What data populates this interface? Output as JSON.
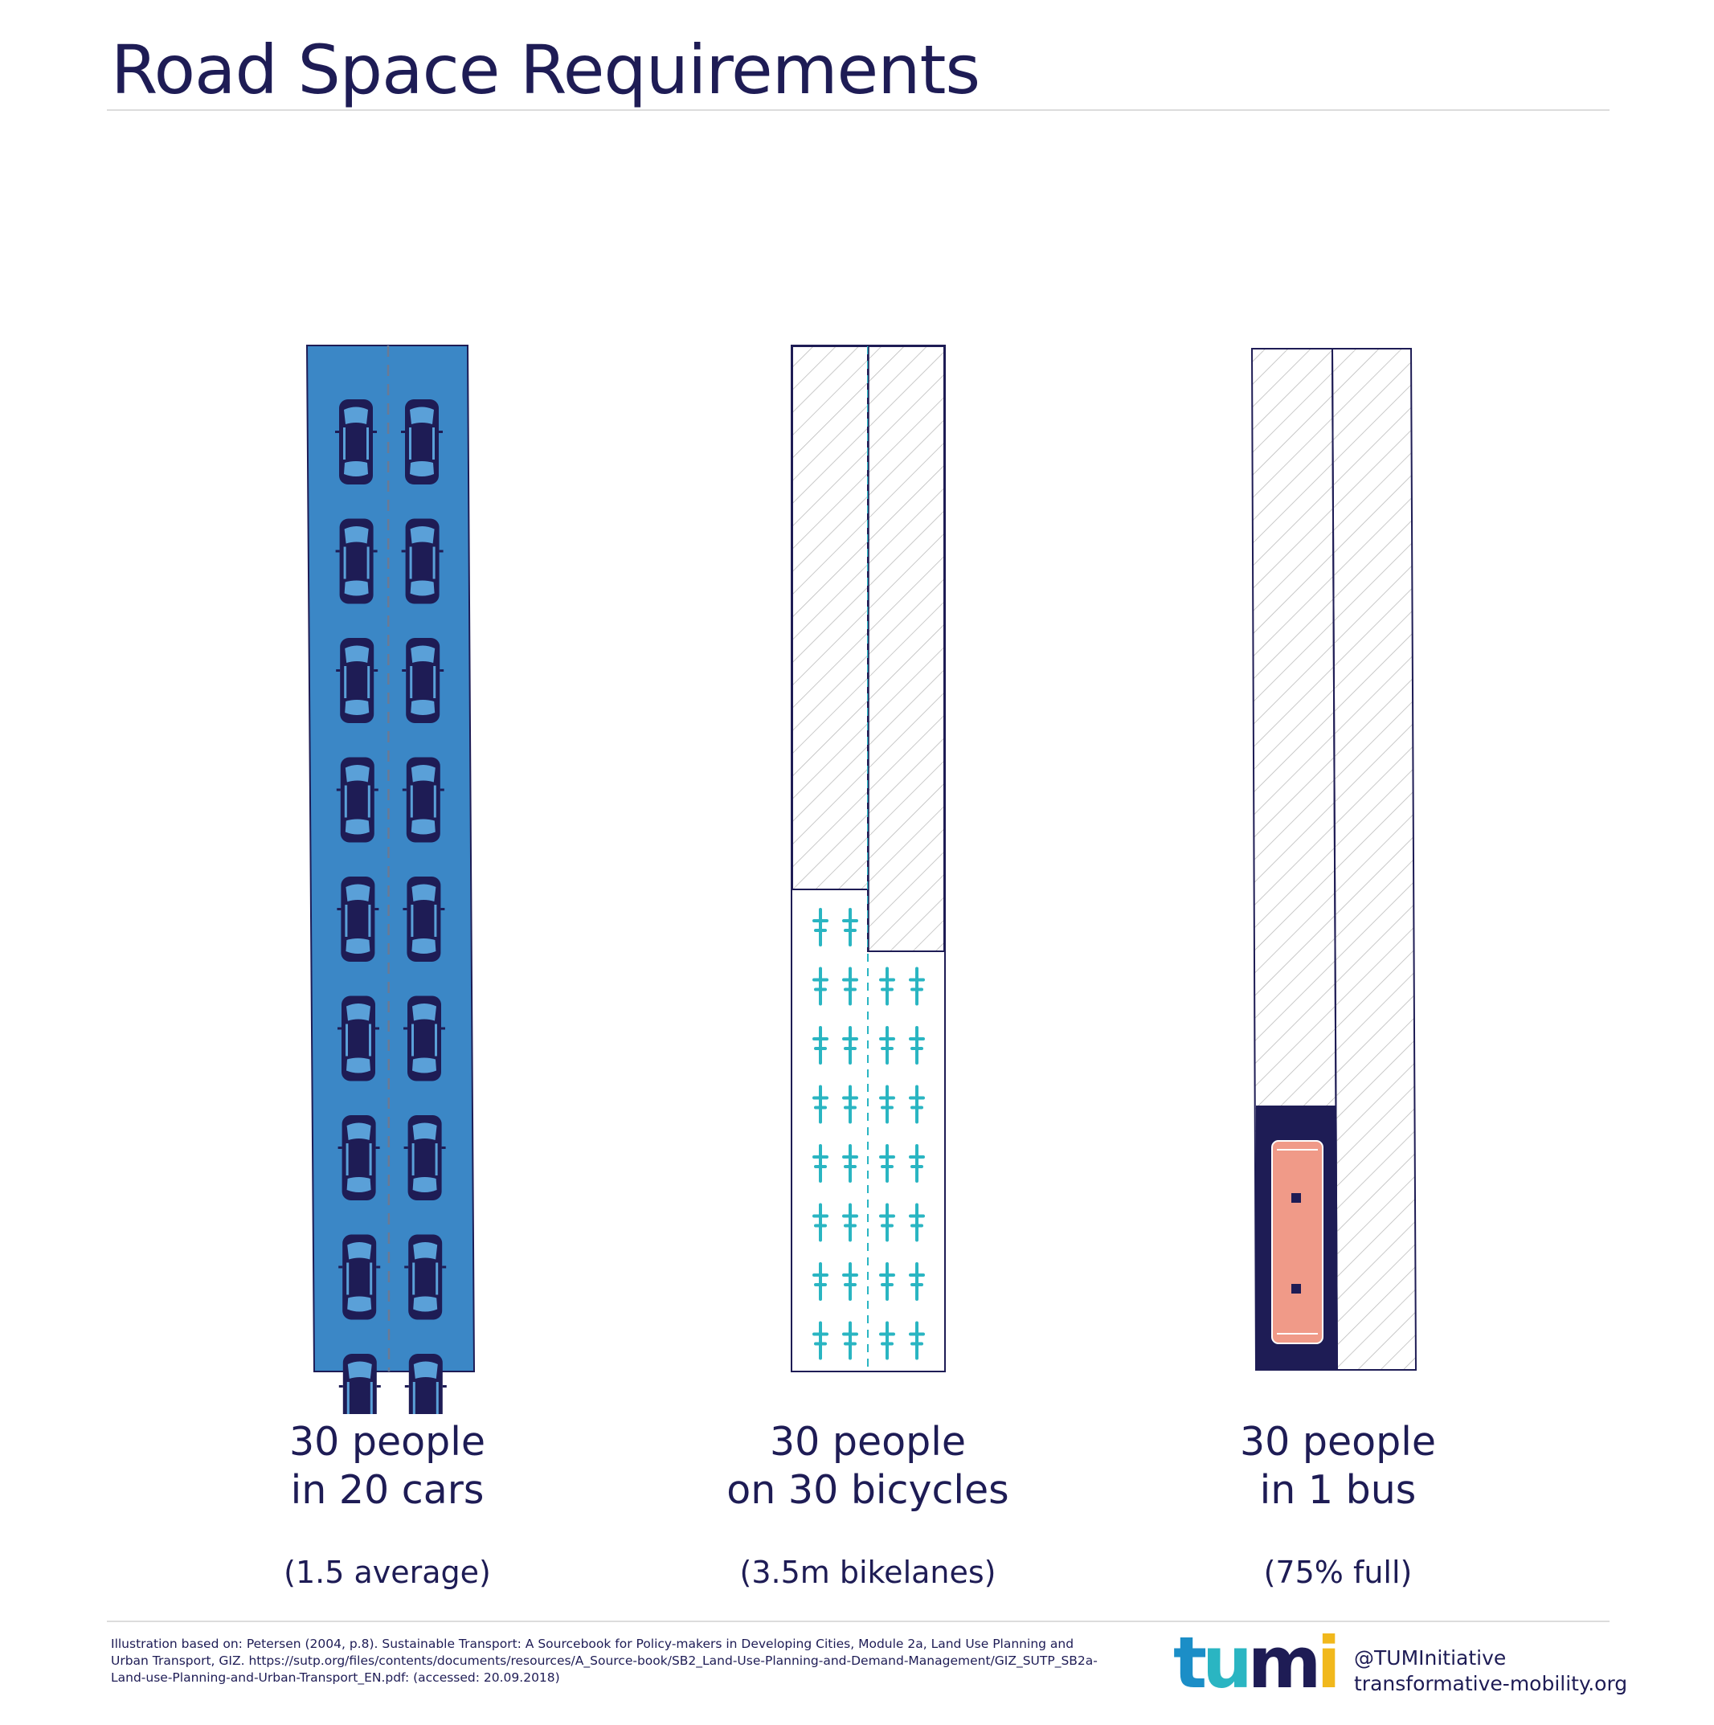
{
  "title": "Road Space Requirements",
  "panels": [
    {
      "id": "cars",
      "line1": "30 people",
      "line2": "in 20 cars",
      "note": "(1.5 average)",
      "vehicle_count": 20
    },
    {
      "id": "bicycles",
      "line1": "30 people",
      "line2": "on 30 bicycles",
      "note": "(3.5m bikelanes)",
      "vehicle_count": 30
    },
    {
      "id": "bus",
      "line1": "30 people",
      "line2": "in 1 bus",
      "note": "(75% full)",
      "vehicle_count": 1
    }
  ],
  "footnote": "Illustration based on: Petersen (2004, p.8). Sustainable Transport: A Sourcebook for Policy-makers in Developing Cities, Module 2a, Land Use Planning and Urban Transport, GIZ. https://sutp.org/files/contents/documents/resources/A_Source-book/SB2_Land-Use-Planning-and-Demand-Management/GIZ_SUTP_SB2a-Land-use-Planning-and-Urban-Transport_EN.pdf: (accessed: 20.09.2018)",
  "logo": {
    "letters": [
      "t",
      "u",
      "m",
      "i"
    ],
    "colors": [
      "#1b8ec7",
      "#2ab5c2",
      "#1e1c55",
      "#f1b81c"
    ]
  },
  "social": {
    "handle": "@TUMInitiative",
    "website": "transformative-mobility.org"
  },
  "colors": {
    "navy": "#1e1c55",
    "road_blue": "#3b87c6",
    "car_window": "#5aa0d8",
    "bike_teal": "#2ab5c2",
    "bus_salmon": "#f09a88",
    "hatch": "#b8b8b8"
  }
}
